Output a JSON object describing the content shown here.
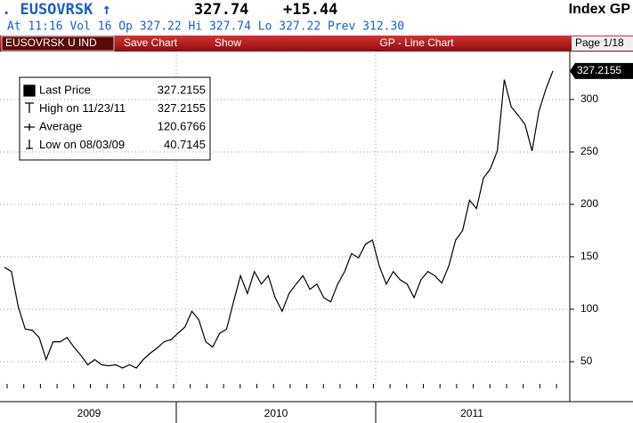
{
  "header": {
    "ticker": ". EUSOVRSK ↑",
    "price": "327.74",
    "change": "+15.44",
    "market": "Index GP",
    "quote": "At 11:16 Vol 16 Op 327.22   Hi 327.74   Lo 327.22   Prev 312.30"
  },
  "toolbar": {
    "security": "EUSOVRSK U IND",
    "save": "Save Chart",
    "show": "Show",
    "title": "GP - Line Chart",
    "page": "Page 1/18"
  },
  "chart_data": {
    "type": "line",
    "series": [
      {
        "name": "Last Price",
        "color": "#000000",
        "values": [
          140,
          136,
          102,
          81,
          80,
          73,
          52,
          69,
          69,
          73,
          64,
          56,
          47,
          52,
          47,
          46,
          47,
          44,
          47,
          44,
          52,
          58,
          63,
          69,
          71,
          77,
          83,
          98,
          90,
          69,
          64,
          77,
          81,
          107,
          132,
          115,
          136,
          124,
          132,
          111,
          98,
          115,
          124,
          132,
          119,
          124,
          111,
          107,
          124,
          136,
          153,
          149,
          162,
          166,
          141,
          124,
          136,
          128,
          124,
          111,
          128,
          136,
          132,
          125,
          141,
          166,
          175,
          204,
          196,
          225,
          234,
          251,
          319,
          293,
          285,
          276,
          251,
          289,
          310,
          327.2155
        ]
      }
    ],
    "last_value_label": 327.2155,
    "legend": [
      {
        "label": "Last Price",
        "value": 327.2155
      },
      {
        "label": "High on 11/23/11",
        "value": 327.2155
      },
      {
        "label": "Average",
        "value": 120.6766
      },
      {
        "label": "Low on 08/03/09",
        "value": 40.7145
      }
    ],
    "x_labels": [
      "2009",
      "2010",
      "2011"
    ],
    "ylim": [
      28.8,
      341.5
    ],
    "yticks": [
      50,
      100,
      150,
      200,
      250,
      300
    ],
    "grid": true
  }
}
